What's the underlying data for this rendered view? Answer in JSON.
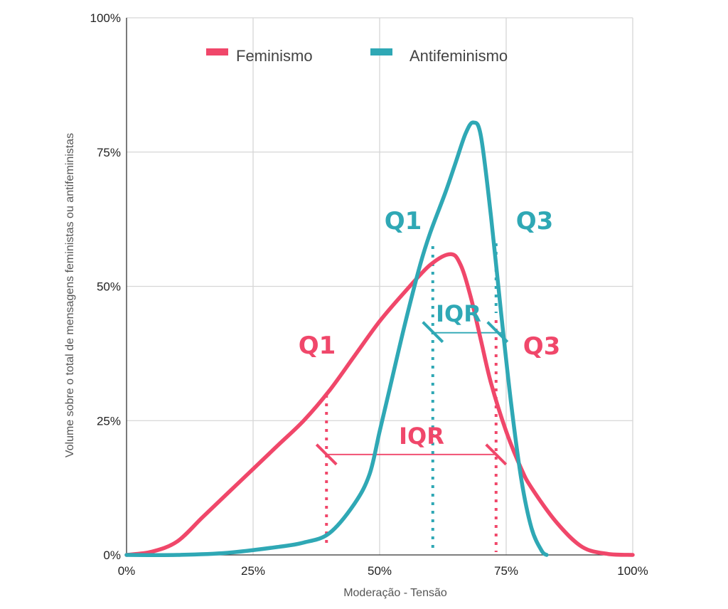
{
  "chart_data": {
    "type": "line",
    "xlabel": "Moderação - Tensão",
    "ylabel": "Volume sobre o total de mensagens feministas ou antifeministas",
    "xlim": [
      0,
      100
    ],
    "ylim": [
      0,
      100
    ],
    "x_ticks": [
      "0%",
      "25%",
      "50%",
      "75%",
      "100%"
    ],
    "y_ticks": [
      "0%",
      "25%",
      "50%",
      "75%",
      "100%"
    ],
    "grid": true,
    "legend_position": "top",
    "series": [
      {
        "name": "Feminismo",
        "color": "#f0476a",
        "points": [
          [
            0,
            0
          ],
          [
            5,
            0.6
          ],
          [
            10,
            2.5
          ],
          [
            15,
            7
          ],
          [
            20,
            11.5
          ],
          [
            25,
            16
          ],
          [
            30,
            20.5
          ],
          [
            35,
            25
          ],
          [
            40,
            30.5
          ],
          [
            45,
            37
          ],
          [
            50,
            43.5
          ],
          [
            55,
            49
          ],
          [
            60,
            54
          ],
          [
            64,
            56
          ],
          [
            66,
            54
          ],
          [
            68,
            48
          ],
          [
            70,
            40
          ],
          [
            72,
            32
          ],
          [
            75,
            23
          ],
          [
            78,
            16
          ],
          [
            80,
            12.5
          ],
          [
            85,
            6
          ],
          [
            90,
            1.5
          ],
          [
            95,
            0.2
          ],
          [
            100,
            0
          ]
        ]
      },
      {
        "name": "Antifeminismo",
        "color": "#2fa8b5",
        "points": [
          [
            0,
            0
          ],
          [
            10,
            0
          ],
          [
            20,
            0.4
          ],
          [
            30,
            1.5
          ],
          [
            35,
            2.3
          ],
          [
            40,
            4
          ],
          [
            45,
            9.5
          ],
          [
            48,
            15
          ],
          [
            50,
            23
          ],
          [
            52,
            31
          ],
          [
            55,
            43
          ],
          [
            58,
            54
          ],
          [
            60,
            60
          ],
          [
            63,
            67.5
          ],
          [
            65,
            73
          ],
          [
            67,
            78.5
          ],
          [
            68.5,
            80.5
          ],
          [
            70,
            78
          ],
          [
            72,
            63
          ],
          [
            74,
            45
          ],
          [
            76,
            28
          ],
          [
            78,
            14
          ],
          [
            80,
            5
          ],
          [
            82,
            0.8
          ],
          [
            83,
            0
          ]
        ]
      }
    ],
    "annotations": {
      "feminismo": {
        "q1_label": "Q1",
        "q3_label": "Q3",
        "iqr_label": "IQR",
        "q1": 39.5,
        "q3": 73,
        "iqr_y": 18.7
      },
      "antifeminismo": {
        "q1_label": "Q1",
        "q3_label": "Q3",
        "iqr_label": "IQR",
        "q1": 60.5,
        "q3": 73,
        "iqr_y": 41.5
      }
    }
  }
}
